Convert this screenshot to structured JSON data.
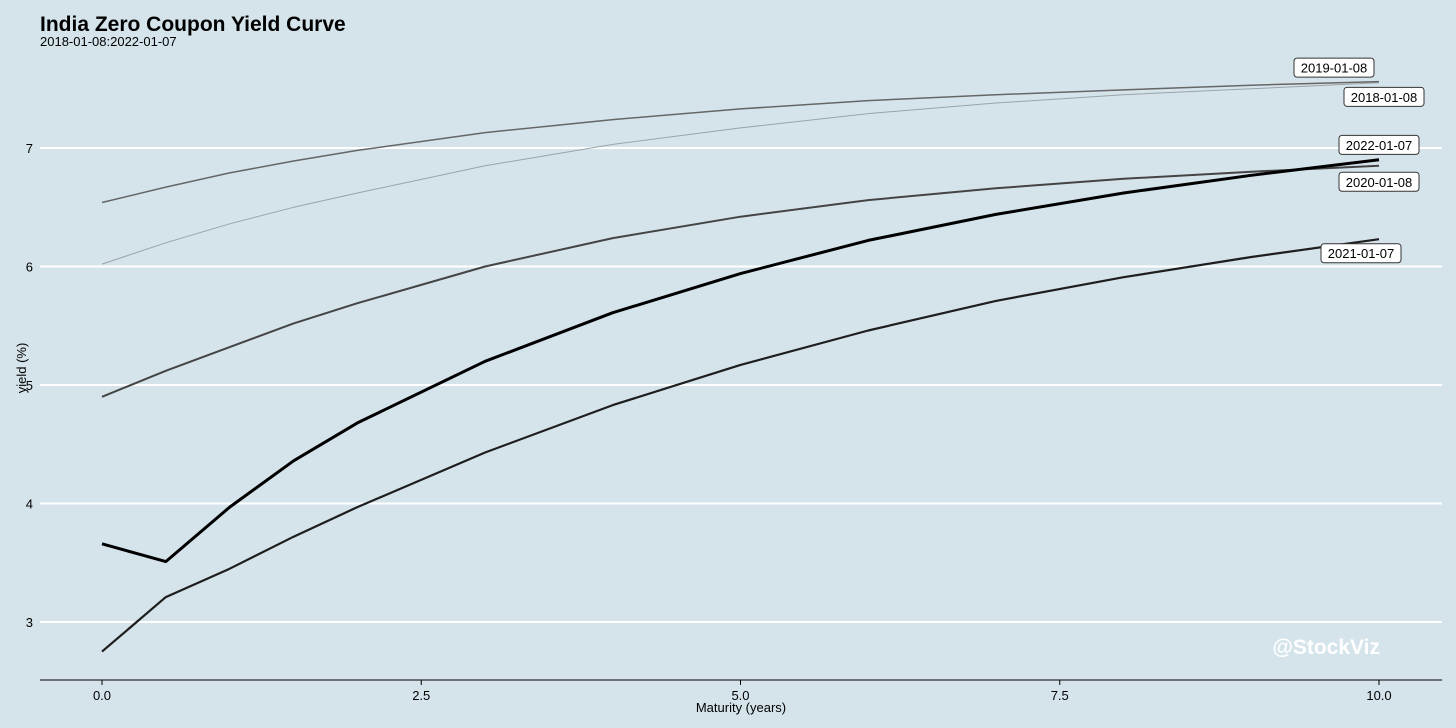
{
  "chart_data": {
    "type": "line",
    "title": "India Zero Coupon Yield Curve",
    "subtitle": "2018-01-08:2022-01-07",
    "xlabel": "Maturity (years)",
    "ylabel": "yield (%)",
    "xlim": [
      -0.5,
      10.5
    ],
    "ylim": [
      2.5,
      7.8
    ],
    "xticks": [
      0.0,
      2.5,
      5.0,
      7.5,
      10.0
    ],
    "xtick_labels": [
      "0.0",
      "2.5",
      "5.0",
      "7.5",
      "10.0"
    ],
    "yticks": [
      3,
      4,
      5,
      6,
      7
    ],
    "ytick_labels": [
      "3",
      "4",
      "5",
      "6",
      "7"
    ],
    "grid": "horizontal",
    "legend": "labels at line ends",
    "x": [
      0,
      0.5,
      1,
      1.5,
      2,
      3,
      4,
      5,
      6,
      7,
      8,
      9,
      10
    ],
    "series": [
      {
        "name": "2018-01-08",
        "color": "#9aa3a8",
        "width": 1,
        "values": [
          6.02,
          6.2,
          6.36,
          6.5,
          6.62,
          6.85,
          7.03,
          7.17,
          7.29,
          7.38,
          7.45,
          7.5,
          7.55
        ]
      },
      {
        "name": "2019-01-08",
        "color": "#666666",
        "width": 1.5,
        "values": [
          6.54,
          6.67,
          6.79,
          6.89,
          6.98,
          7.13,
          7.24,
          7.33,
          7.4,
          7.45,
          7.49,
          7.53,
          7.56
        ]
      },
      {
        "name": "2020-01-08",
        "color": "#444444",
        "width": 2,
        "values": [
          4.9,
          5.12,
          5.32,
          5.52,
          5.69,
          6.0,
          6.24,
          6.42,
          6.56,
          6.66,
          6.74,
          6.8,
          6.85
        ]
      },
      {
        "name": "2021-01-07",
        "color": "#1e1e1e",
        "width": 2.2,
        "values": [
          2.75,
          3.21,
          3.45,
          3.72,
          3.97,
          4.43,
          4.83,
          5.17,
          5.46,
          5.71,
          5.91,
          6.08,
          6.23
        ]
      },
      {
        "name": "2022-01-07",
        "color": "#000000",
        "width": 3,
        "values": [
          3.66,
          3.51,
          3.97,
          4.36,
          4.68,
          5.2,
          5.61,
          5.94,
          6.22,
          6.44,
          6.62,
          6.77,
          6.9
        ]
      }
    ],
    "watermark": "@StockViz"
  }
}
